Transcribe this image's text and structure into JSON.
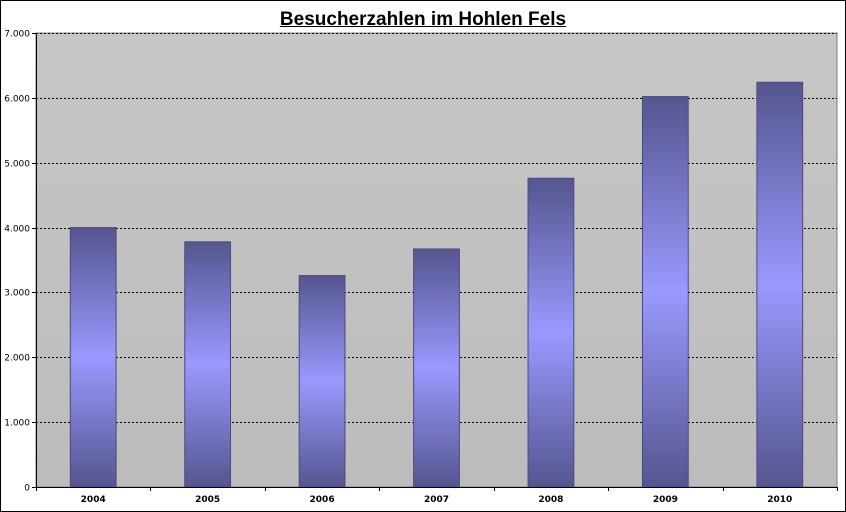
{
  "chart_data": {
    "type": "bar",
    "title": "Besucherzahlen im Hohlen Fels",
    "xlabel": "",
    "ylabel": "",
    "categories": [
      "2004",
      "2005",
      "2006",
      "2007",
      "2008",
      "2009",
      "2010"
    ],
    "values": [
      4000,
      3780,
      3260,
      3670,
      4760,
      6020,
      6240
    ],
    "ylim": [
      0,
      7000
    ],
    "yticks": [
      0,
      1000,
      2000,
      3000,
      4000,
      5000,
      6000,
      7000
    ],
    "ytick_labels": [
      "0",
      "1.000",
      "2.000",
      "3.000",
      "4.000",
      "5.000",
      "6.000",
      "7.000"
    ],
    "grid": true,
    "legend": "none",
    "colors": {
      "plot_background": "#c0c0c0",
      "bar_edge": "#4a4a80",
      "bar_light": "#9999ff",
      "bar_dark": "#55558f",
      "gridline": "#000000"
    }
  }
}
